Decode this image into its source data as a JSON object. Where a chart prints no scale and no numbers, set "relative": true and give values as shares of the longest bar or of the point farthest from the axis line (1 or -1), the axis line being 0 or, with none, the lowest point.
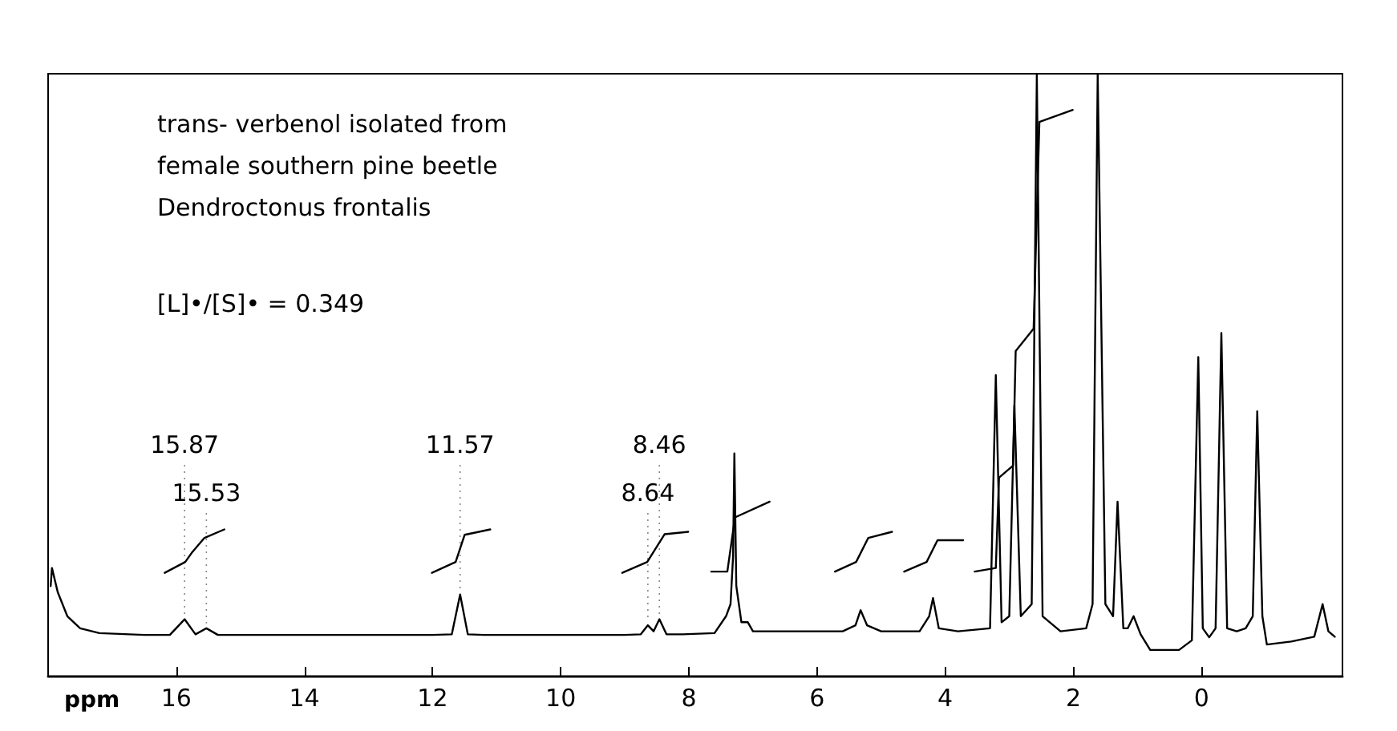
{
  "chart_data": {
    "type": "line",
    "relative": true,
    "xlabel": "ppm",
    "annotations": [
      "trans- verbenol isolated from",
      "female southern pine beetle",
      "Dendroctonus frontalis",
      "[L]•/[S]• = 0.349",
      {
        "text": "15.87",
        "x": 15.87,
        "y": 0.095
      },
      {
        "text": "15.53",
        "x": 15.53,
        "y": 0.08
      },
      {
        "text": "8.46",
        "x": 8.46,
        "y": 0.095
      },
      {
        "text": "8.64",
        "x": 8.64,
        "y": 0.085
      },
      {
        "text": "11.57",
        "x": 11.57,
        "y": 0.136
      }
    ],
    "xlim": [
      18,
      -2.2
    ],
    "xticks": [
      16,
      14,
      12,
      10,
      8,
      6,
      4,
      2,
      0
    ],
    "grid": false,
    "marker": "none",
    "line_style": "solid",
    "series": [
      {
        "color": "#000000",
        "x": [
          17.96,
          17.94,
          17.85,
          17.7,
          17.5,
          17.2,
          16.5,
          16.1,
          15.87,
          15.7,
          15.53,
          15.35,
          14.5,
          13,
          12.0,
          11.7,
          11.57,
          11.45,
          11.2,
          10,
          9,
          8.75,
          8.64,
          8.55,
          8.46,
          8.35,
          8.1,
          7.6,
          7.42,
          7.35,
          7.31,
          7.29,
          7.26,
          7.18,
          7.08,
          7.0,
          6.5,
          5.6,
          5.4,
          5.32,
          5.22,
          5.0,
          4.4,
          4.25,
          4.19,
          4.1,
          3.8,
          3.3,
          3.21,
          3.12,
          3.0,
          2.92,
          2.82,
          2.65,
          2.57,
          2.48,
          2.2,
          1.8,
          1.7,
          1.62,
          1.5,
          1.38,
          1.31,
          1.22,
          1.15,
          1.06,
          0.95,
          0.8,
          0.61,
          0.35,
          0.15,
          0.05,
          -0.02,
          -0.12,
          -0.22,
          -0.31,
          -0.4,
          -0.55,
          -0.69,
          -0.8,
          -0.87,
          -0.95,
          -1.02,
          -1.4,
          -1.76,
          -1.89,
          -1.98,
          -2.08
        ],
        "values": [
          0.15,
          0.18,
          0.14,
          0.1,
          0.08,
          0.072,
          0.069,
          0.069,
          0.095,
          0.07,
          0.08,
          0.069,
          0.069,
          0.069,
          0.069,
          0.07,
          0.136,
          0.07,
          0.069,
          0.069,
          0.069,
          0.07,
          0.085,
          0.075,
          0.095,
          0.07,
          0.07,
          0.072,
          0.1,
          0.12,
          0.2,
          0.37,
          0.15,
          0.09,
          0.09,
          0.075,
          0.075,
          0.075,
          0.085,
          0.11,
          0.085,
          0.075,
          0.075,
          0.1,
          0.13,
          0.08,
          0.075,
          0.08,
          0.5,
          0.09,
          0.1,
          0.45,
          0.1,
          0.12,
          1,
          0.1,
          0.075,
          0.08,
          0.12,
          1,
          0.12,
          0.1,
          0.29,
          0.08,
          0.08,
          0.1,
          0.07,
          0.044,
          0.044,
          0.044,
          0.06,
          0.53,
          0.08,
          0.065,
          0.08,
          0.57,
          0.08,
          0.075,
          0.08,
          0.1,
          0.44,
          0.1,
          0.053,
          0.058,
          0.066,
          0.12,
          0.075,
          0.066
        ]
      },
      {
        "color": "#000000",
        "x": [
          16.18,
          15.86,
          15.76,
          15.56,
          15.25,
          null,
          12.01,
          11.64,
          11.5,
          11.1,
          null,
          9.04,
          8.65,
          8.38,
          8.01,
          null,
          7.65,
          7.4,
          7.28,
          6.74,
          null,
          5.72,
          5.39,
          5.2,
          4.83,
          null,
          4.64,
          4.29,
          4.12,
          3.72,
          null,
          3.54,
          3.21,
          3.16,
          2.94,
          2.9,
          2.62,
          2.53,
          2.01
        ],
        "values": [
          0.172,
          0.19,
          0.205,
          0.23,
          0.244,
          null,
          0.172,
          0.19,
          0.235,
          0.244,
          null,
          0.172,
          0.19,
          0.236,
          0.24,
          null,
          0.174,
          0.174,
          0.264,
          0.29,
          null,
          0.174,
          0.19,
          0.23,
          0.24,
          null,
          0.174,
          0.19,
          0.226,
          0.226,
          null,
          0.174,
          0.18,
          0.33,
          0.35,
          0.54,
          0.577,
          0.92,
          0.94
        ]
      }
    ]
  }
}
